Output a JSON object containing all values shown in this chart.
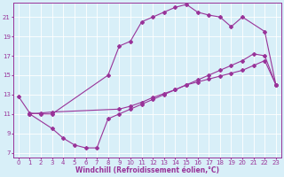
{
  "line1_x": [
    0,
    1,
    2,
    3,
    8,
    9,
    10,
    11,
    12,
    13,
    14,
    15,
    16,
    17,
    18,
    19,
    20,
    22,
    23
  ],
  "line1_y": [
    12.8,
    11.1,
    11.0,
    11.0,
    15.0,
    18.0,
    18.5,
    20.5,
    21.0,
    21.5,
    22.0,
    22.3,
    21.5,
    21.2,
    21.0,
    20.0,
    21.0,
    19.5,
    14.0
  ],
  "line2_x": [
    1,
    2,
    3,
    9,
    10,
    11,
    12,
    13,
    14,
    15,
    16,
    17,
    18,
    19,
    20,
    21,
    22,
    23
  ],
  "line2_y": [
    11.0,
    11.1,
    11.2,
    11.5,
    11.8,
    12.2,
    12.7,
    13.1,
    13.5,
    14.0,
    14.5,
    15.0,
    15.5,
    16.0,
    16.5,
    17.2,
    17.0,
    14.0
  ],
  "line3_x": [
    1,
    3,
    4,
    5,
    6,
    7,
    8,
    9,
    10,
    11,
    12,
    13,
    14,
    15,
    16,
    17,
    18,
    19,
    20,
    21,
    22,
    23
  ],
  "line3_y": [
    11.0,
    9.5,
    8.5,
    7.8,
    7.5,
    7.5,
    10.5,
    11.0,
    11.5,
    12.0,
    12.5,
    13.0,
    13.5,
    14.0,
    14.3,
    14.6,
    14.9,
    15.2,
    15.5,
    16.0,
    16.5,
    14.0
  ],
  "color": "#993399",
  "bg_color": "#d8eff8",
  "grid_color": "#ffffff",
  "xlabel": "Windchill (Refroidissement éolien,°C)",
  "xlim": [
    -0.5,
    23.5
  ],
  "ylim": [
    6.5,
    22.5
  ],
  "xticks": [
    0,
    1,
    2,
    3,
    4,
    5,
    6,
    7,
    8,
    9,
    10,
    11,
    12,
    13,
    14,
    15,
    16,
    17,
    18,
    19,
    20,
    21,
    22,
    23
  ],
  "yticks": [
    7,
    9,
    11,
    13,
    15,
    17,
    19,
    21
  ],
  "xlabel_fontsize": 5.5,
  "tick_fontsize": 5.0,
  "marker": "D",
  "markersize": 2.0,
  "linewidth": 0.8
}
